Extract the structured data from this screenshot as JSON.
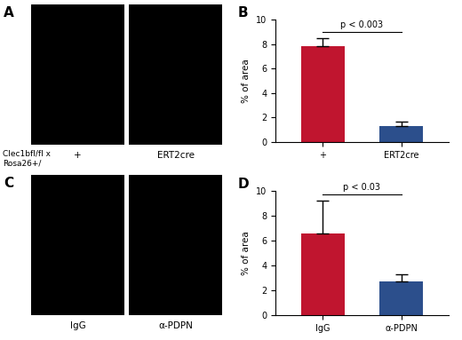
{
  "image_panels": [
    {
      "panel": "A",
      "row_label": [
        "Clec1bfl/fl x",
        "Rosa26+/"
      ],
      "labels": [
        "+",
        "ERT2cre"
      ]
    },
    {
      "panel": "C",
      "labels": [
        "IgG",
        "α-PDPN"
      ]
    }
  ],
  "chart_data": [
    {
      "type": "bar",
      "panel": "B",
      "categories": [
        "+",
        "ERT2cre"
      ],
      "values": [
        7.8,
        1.3
      ],
      "errors": [
        0.7,
        0.4
      ],
      "colors": [
        "#c0152f",
        "#2c4f8c"
      ],
      "y_label": "% of area",
      "ylim": [
        0,
        10
      ],
      "yticks": [
        0,
        2,
        4,
        6,
        8,
        10
      ],
      "annotation": "p < 0.003"
    },
    {
      "type": "bar",
      "panel": "D",
      "categories": [
        "IgG",
        "α-PDPN"
      ],
      "values": [
        6.6,
        2.7
      ],
      "errors": [
        2.6,
        0.6
      ],
      "colors": [
        "#c0152f",
        "#2c4f8c"
      ],
      "y_label": "% of area",
      "ylim": [
        0,
        10
      ],
      "yticks": [
        0,
        2,
        4,
        6,
        8,
        10
      ],
      "annotation": "p < 0.03"
    }
  ]
}
